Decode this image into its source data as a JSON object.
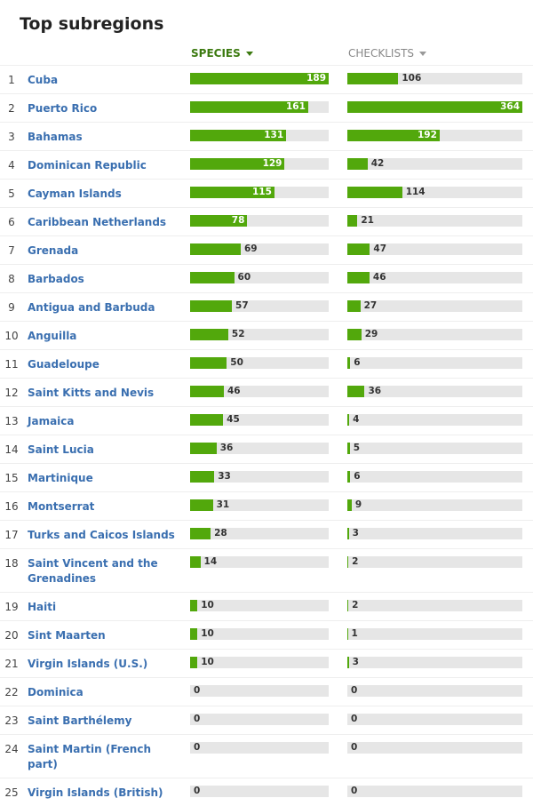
{
  "header": {
    "title": "Top subregions",
    "columns": [
      "SPECIES",
      "CHECKLISTS"
    ]
  },
  "rows": [
    {
      "rank": 1,
      "name": "Cuba",
      "species": 189,
      "checklists": 106
    },
    {
      "rank": 2,
      "name": "Puerto Rico",
      "species": 161,
      "checklists": 364
    },
    {
      "rank": 3,
      "name": "Bahamas",
      "species": 131,
      "checklists": 192
    },
    {
      "rank": 4,
      "name": "Dominican Republic",
      "species": 129,
      "checklists": 42
    },
    {
      "rank": 5,
      "name": "Cayman Islands",
      "species": 115,
      "checklists": 114
    },
    {
      "rank": 6,
      "name": "Caribbean Netherlands",
      "species": 78,
      "checklists": 21
    },
    {
      "rank": 7,
      "name": "Grenada",
      "species": 69,
      "checklists": 47
    },
    {
      "rank": 8,
      "name": "Barbados",
      "species": 60,
      "checklists": 46
    },
    {
      "rank": 9,
      "name": "Antigua and Barbuda",
      "species": 57,
      "checklists": 27
    },
    {
      "rank": 10,
      "name": "Anguilla",
      "species": 52,
      "checklists": 29
    },
    {
      "rank": 11,
      "name": "Guadeloupe",
      "species": 50,
      "checklists": 6
    },
    {
      "rank": 12,
      "name": "Saint Kitts and Nevis",
      "species": 46,
      "checklists": 36
    },
    {
      "rank": 13,
      "name": "Jamaica",
      "species": 45,
      "checklists": 4
    },
    {
      "rank": 14,
      "name": "Saint Lucia",
      "species": 36,
      "checklists": 5
    },
    {
      "rank": 15,
      "name": "Martinique",
      "species": 33,
      "checklists": 6
    },
    {
      "rank": 16,
      "name": "Montserrat",
      "species": 31,
      "checklists": 9
    },
    {
      "rank": 17,
      "name": "Turks and Caicos Islands",
      "species": 28,
      "checklists": 3
    },
    {
      "rank": 18,
      "name": "Saint Vincent and the Grenadines",
      "species": 14,
      "checklists": 2
    },
    {
      "rank": 19,
      "name": "Haiti",
      "species": 10,
      "checklists": 2
    },
    {
      "rank": 20,
      "name": "Sint Maarten",
      "species": 10,
      "checklists": 1
    },
    {
      "rank": 21,
      "name": "Virgin Islands (U.S.)",
      "species": 10,
      "checklists": 3
    },
    {
      "rank": 22,
      "name": "Dominica",
      "species": 0,
      "checklists": 0
    },
    {
      "rank": 23,
      "name": "Saint Barthélemy",
      "species": 0,
      "checklists": 0
    },
    {
      "rank": 24,
      "name": "Saint Martin (French part)",
      "species": 0,
      "checklists": 0
    },
    {
      "rank": 25,
      "name": "Virgin Islands (British)",
      "species": 0,
      "checklists": 0
    }
  ]
}
